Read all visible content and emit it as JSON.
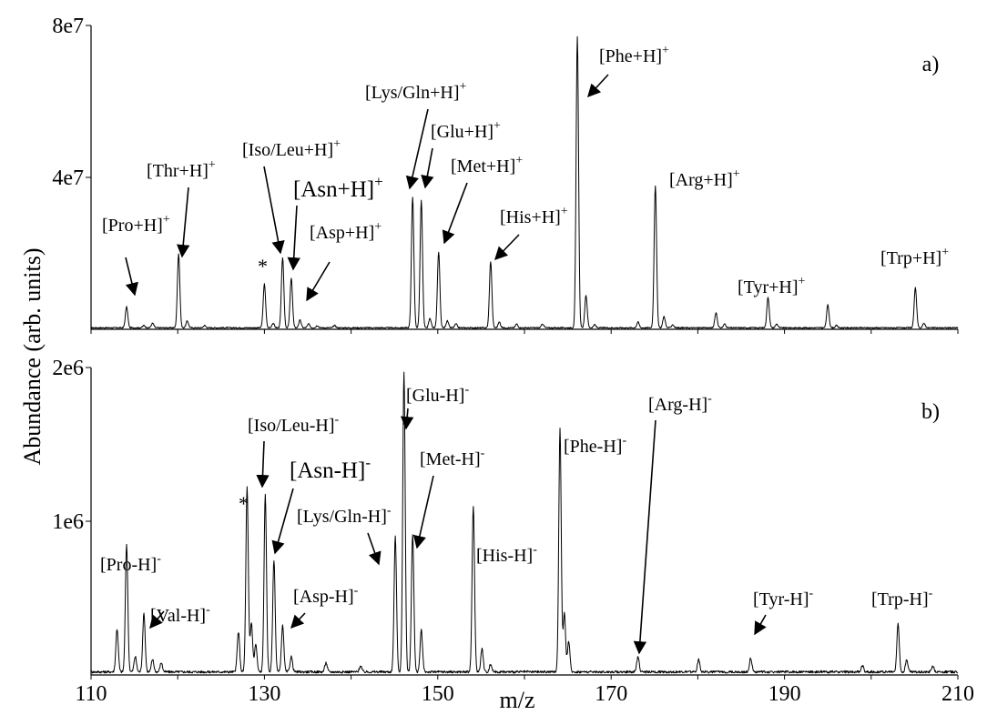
{
  "chart_data": {
    "type": "line",
    "xlabel": "m/z",
    "ylabel": "Abundance (arb. units)",
    "xlim": [
      110,
      210
    ],
    "x_ticks": [
      {
        "value": 110,
        "label": "110"
      },
      {
        "value": 130,
        "label": "130"
      },
      {
        "value": 150,
        "label": "150"
      },
      {
        "value": 170,
        "label": "170"
      },
      {
        "value": 190,
        "label": "190"
      },
      {
        "value": 210,
        "label": "210"
      }
    ],
    "grid": false,
    "panels": [
      {
        "id": "a",
        "tag": "a)",
        "ylim": [
          0,
          80000000
        ],
        "y_ticks": [
          {
            "value": 40000000,
            "label": "4e7"
          },
          {
            "value": 80000000,
            "label": "8e7"
          }
        ],
        "baseline": 400000,
        "peaks": [
          {
            "mz": 114.1,
            "y": 5500000
          },
          {
            "mz": 116.1,
            "y": 600000
          },
          {
            "mz": 117.1,
            "y": 1200000
          },
          {
            "mz": 120.1,
            "y": 19500000
          },
          {
            "mz": 121.1,
            "y": 1800000
          },
          {
            "mz": 123.1,
            "y": 600000
          },
          {
            "mz": 130.0,
            "y": 11500000
          },
          {
            "mz": 131.0,
            "y": 1200000
          },
          {
            "mz": 132.1,
            "y": 18500000
          },
          {
            "mz": 133.1,
            "y": 13000000
          },
          {
            "mz": 134.1,
            "y": 2000000
          },
          {
            "mz": 135.1,
            "y": 1000000
          },
          {
            "mz": 136.1,
            "y": 600000
          },
          {
            "mz": 138.1,
            "y": 600000
          },
          {
            "mz": 147.1,
            "y": 34500000
          },
          {
            "mz": 148.1,
            "y": 33500000
          },
          {
            "mz": 149.1,
            "y": 2500000
          },
          {
            "mz": 150.1,
            "y": 20000000
          },
          {
            "mz": 151.1,
            "y": 1800000
          },
          {
            "mz": 152.1,
            "y": 1000000
          },
          {
            "mz": 156.1,
            "y": 17500000
          },
          {
            "mz": 157.1,
            "y": 1500000
          },
          {
            "mz": 159.1,
            "y": 1000000
          },
          {
            "mz": 162.1,
            "y": 1000000
          },
          {
            "mz": 166.1,
            "y": 76500000
          },
          {
            "mz": 167.1,
            "y": 8500000
          },
          {
            "mz": 168.1,
            "y": 800000
          },
          {
            "mz": 173.1,
            "y": 1500000
          },
          {
            "mz": 175.1,
            "y": 37500000
          },
          {
            "mz": 176.1,
            "y": 3000000
          },
          {
            "mz": 177.1,
            "y": 800000
          },
          {
            "mz": 182.1,
            "y": 4000000
          },
          {
            "mz": 183.1,
            "y": 1000000
          },
          {
            "mz": 188.1,
            "y": 8000000
          },
          {
            "mz": 189.1,
            "y": 1000000
          },
          {
            "mz": 195.0,
            "y": 6000000
          },
          {
            "mz": 196.0,
            "y": 600000
          },
          {
            "mz": 205.1,
            "y": 10500000
          },
          {
            "mz": 206.1,
            "y": 1200000
          }
        ],
        "annotations": [
          {
            "name": "pro",
            "label": "[Pro+H]",
            "charge": "+",
            "size": "normal"
          },
          {
            "name": "thr",
            "label": "[Thr+H]",
            "charge": "+",
            "size": "normal"
          },
          {
            "name": "star",
            "label": "*",
            "charge": "",
            "size": "star"
          },
          {
            "name": "iso-leu",
            "label": "[Iso/Leu+H]",
            "charge": "+",
            "size": "normal"
          },
          {
            "name": "asn",
            "label": "[Asn+H]",
            "charge": "+",
            "size": "big"
          },
          {
            "name": "asp",
            "label": "[Asp+H]",
            "charge": "+",
            "size": "normal"
          },
          {
            "name": "lys-gln",
            "label": "[Lys/Gln+H]",
            "charge": "+",
            "size": "normal"
          },
          {
            "name": "glu",
            "label": "[Glu+H]",
            "charge": "+",
            "size": "normal"
          },
          {
            "name": "met",
            "label": "[Met+H]",
            "charge": "+",
            "size": "normal"
          },
          {
            "name": "his",
            "label": "[His+H]",
            "charge": "+",
            "size": "normal"
          },
          {
            "name": "phe",
            "label": "[Phe+H]",
            "charge": "+",
            "size": "normal"
          },
          {
            "name": "arg",
            "label": "[Arg+H]",
            "charge": "+",
            "size": "normal"
          },
          {
            "name": "tyr",
            "label": "[Tyr+H]",
            "charge": "+",
            "size": "normal"
          },
          {
            "name": "trp",
            "label": "[Trp+H]",
            "charge": "+",
            "size": "normal"
          }
        ]
      },
      {
        "id": "b",
        "tag": "b)",
        "ylim": [
          0,
          2000000
        ],
        "y_ticks": [
          {
            "value": 1000000,
            "label": "1e6"
          },
          {
            "value": 2000000,
            "label": "2e6"
          }
        ],
        "baseline": 20000,
        "peaks": [
          {
            "mz": 113.0,
            "y": 280000
          },
          {
            "mz": 114.1,
            "y": 830000
          },
          {
            "mz": 115.1,
            "y": 100000
          },
          {
            "mz": 116.1,
            "y": 380000
          },
          {
            "mz": 117.1,
            "y": 80000
          },
          {
            "mz": 118.1,
            "y": 60000
          },
          {
            "mz": 127.0,
            "y": 260000
          },
          {
            "mz": 128.0,
            "y": 1200000
          },
          {
            "mz": 128.5,
            "y": 320000
          },
          {
            "mz": 129.0,
            "y": 180000
          },
          {
            "mz": 130.1,
            "y": 1150000
          },
          {
            "mz": 131.1,
            "y": 730000
          },
          {
            "mz": 132.1,
            "y": 300000
          },
          {
            "mz": 133.1,
            "y": 100000
          },
          {
            "mz": 137.1,
            "y": 60000
          },
          {
            "mz": 141.1,
            "y": 40000
          },
          {
            "mz": 145.1,
            "y": 880000
          },
          {
            "mz": 146.1,
            "y": 1950000
          },
          {
            "mz": 147.1,
            "y": 900000
          },
          {
            "mz": 148.1,
            "y": 270000
          },
          {
            "mz": 154.1,
            "y": 1080000
          },
          {
            "mz": 155.1,
            "y": 150000
          },
          {
            "mz": 156.1,
            "y": 50000
          },
          {
            "mz": 164.1,
            "y": 1580000
          },
          {
            "mz": 164.6,
            "y": 380000
          },
          {
            "mz": 165.1,
            "y": 200000
          },
          {
            "mz": 173.1,
            "y": 100000
          },
          {
            "mz": 180.1,
            "y": 80000
          },
          {
            "mz": 186.1,
            "y": 90000
          },
          {
            "mz": 199.0,
            "y": 40000
          },
          {
            "mz": 203.1,
            "y": 310000
          },
          {
            "mz": 204.1,
            "y": 80000
          },
          {
            "mz": 207.1,
            "y": 40000
          }
        ],
        "annotations": [
          {
            "name": "pro",
            "label": "[Pro-H]",
            "charge": "-",
            "size": "normal"
          },
          {
            "name": "val",
            "label": "[Val-H]",
            "charge": "-",
            "size": "normal"
          },
          {
            "name": "star",
            "label": "*",
            "charge": "",
            "size": "star"
          },
          {
            "name": "iso-leu",
            "label": "[Iso/Leu-H]",
            "charge": "-",
            "size": "normal"
          },
          {
            "name": "asn",
            "label": "[Asn-H]",
            "charge": "-",
            "size": "big"
          },
          {
            "name": "asp",
            "label": "[Asp-H]",
            "charge": "-",
            "size": "normal"
          },
          {
            "name": "lys-gln",
            "label": "[Lys/Gln-H]",
            "charge": "-",
            "size": "normal"
          },
          {
            "name": "glu",
            "label": "[Glu-H]",
            "charge": "-",
            "size": "normal"
          },
          {
            "name": "met",
            "label": "[Met-H]",
            "charge": "-",
            "size": "normal"
          },
          {
            "name": "his",
            "label": "[His-H]",
            "charge": "-",
            "size": "normal"
          },
          {
            "name": "phe",
            "label": "[Phe-H]",
            "charge": "-",
            "size": "normal"
          },
          {
            "name": "arg",
            "label": "[Arg-H]",
            "charge": "-",
            "size": "normal"
          },
          {
            "name": "tyr",
            "label": "[Tyr-H]",
            "charge": "-",
            "size": "normal"
          },
          {
            "name": "trp",
            "label": "[Trp-H]",
            "charge": "-",
            "size": "normal"
          }
        ]
      }
    ]
  }
}
